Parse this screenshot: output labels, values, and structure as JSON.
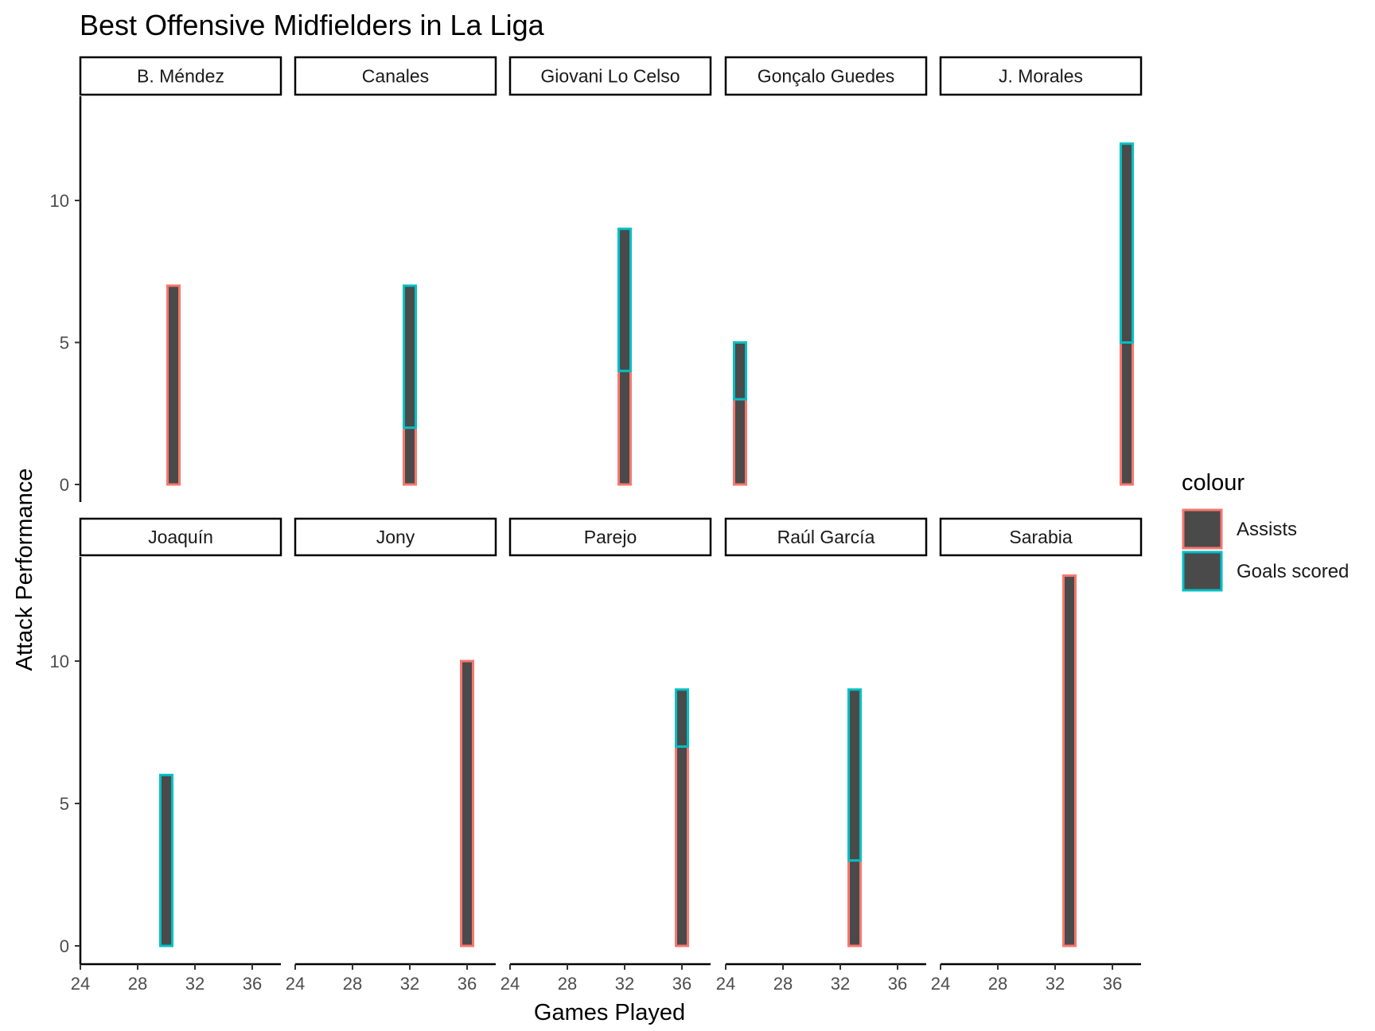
{
  "chart_data": {
    "type": "bar",
    "subtype": "stacked-bar-facets",
    "title": "Best Offensive Midfielders in La Liga",
    "xlabel": "Games Played",
    "ylabel": "Attack Performance",
    "xlim": [
      24,
      38
    ],
    "ylim": [
      0,
      13.5
    ],
    "x_ticks": [
      24,
      28,
      32,
      36
    ],
    "y_ticks": [
      0,
      5,
      10
    ],
    "bar_fill": "#4a4a4a",
    "legend": {
      "title": "colour",
      "placement": "right",
      "entries": [
        {
          "label": "Assists",
          "color": "#F8766D"
        },
        {
          "label": "Goals scored",
          "color": "#00BFC4"
        }
      ]
    },
    "facets": [
      {
        "name": "B. Méndez",
        "games": 30.5,
        "assists": 7,
        "goals": 0
      },
      {
        "name": "Canales",
        "games": 32,
        "assists": 2,
        "goals": 5
      },
      {
        "name": "Giovani Lo Celso",
        "games": 32,
        "assists": 4,
        "goals": 5
      },
      {
        "name": "Gonçalo Guedes",
        "games": 25,
        "assists": 3,
        "goals": 2
      },
      {
        "name": "J. Morales",
        "games": 37,
        "assists": 5,
        "goals": 7
      },
      {
        "name": "Joaquín",
        "games": 30,
        "assists": 0,
        "goals": 6
      },
      {
        "name": "Jony",
        "games": 36,
        "assists": 10,
        "goals": 0
      },
      {
        "name": "Parejo",
        "games": 36,
        "assists": 7,
        "goals": 2
      },
      {
        "name": "Raúl García",
        "games": 33,
        "assists": 3,
        "goals": 6
      },
      {
        "name": "Sarabia",
        "games": 33,
        "assists": 13,
        "goals": 0
      }
    ]
  }
}
